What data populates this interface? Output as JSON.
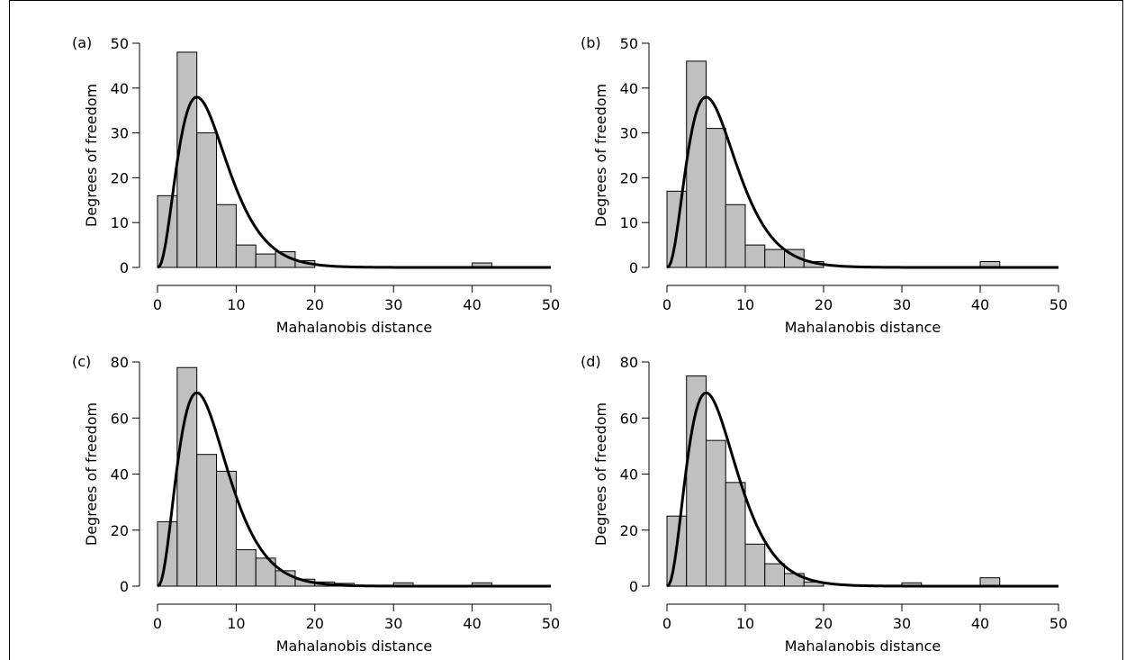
{
  "chart_data": [
    {
      "type": "bar",
      "panel_label": "(a)",
      "xlabel": "Mahalanobis distance",
      "ylabel": "Degrees of freedom",
      "xlim": [
        0,
        50
      ],
      "ylim": [
        0,
        50
      ],
      "xticks": [
        0,
        10,
        20,
        30,
        40,
        50
      ],
      "yticks": [
        0,
        10,
        20,
        30,
        40,
        50
      ],
      "bin_width": 2.5,
      "bins": [
        {
          "x0": 0,
          "value": 16
        },
        {
          "x0": 2.5,
          "value": 48
        },
        {
          "x0": 5,
          "value": 30
        },
        {
          "x0": 7.5,
          "value": 14
        },
        {
          "x0": 10,
          "value": 5
        },
        {
          "x0": 12.5,
          "value": 3
        },
        {
          "x0": 15,
          "value": 3.5
        },
        {
          "x0": 17.5,
          "value": 1.5
        },
        {
          "x0": 40,
          "value": 1
        }
      ],
      "curve_peak": 38,
      "bar_color": "#c0c0c0",
      "curve_color": "#000000"
    },
    {
      "type": "bar",
      "panel_label": "(b)",
      "xlabel": "Mahalanobis distance",
      "ylabel": "Degrees of freedom",
      "xlim": [
        0,
        50
      ],
      "ylim": [
        0,
        50
      ],
      "xticks": [
        0,
        10,
        20,
        30,
        40,
        50
      ],
      "yticks": [
        0,
        10,
        20,
        30,
        40,
        50
      ],
      "bin_width": 2.5,
      "bins": [
        {
          "x0": 0,
          "value": 17
        },
        {
          "x0": 2.5,
          "value": 46
        },
        {
          "x0": 5,
          "value": 31
        },
        {
          "x0": 7.5,
          "value": 14
        },
        {
          "x0": 10,
          "value": 5
        },
        {
          "x0": 12.5,
          "value": 4
        },
        {
          "x0": 15,
          "value": 4
        },
        {
          "x0": 17.5,
          "value": 1.3
        },
        {
          "x0": 40,
          "value": 1.3
        }
      ],
      "curve_peak": 38,
      "bar_color": "#c0c0c0",
      "curve_color": "#000000"
    },
    {
      "type": "bar",
      "panel_label": "(c)",
      "xlabel": "Mahalanobis distance",
      "ylabel": "Degrees of freedom",
      "xlim": [
        0,
        50
      ],
      "ylim": [
        0,
        80
      ],
      "xticks": [
        0,
        10,
        20,
        30,
        40,
        50
      ],
      "yticks": [
        0,
        20,
        40,
        60,
        80
      ],
      "bin_width": 2.5,
      "bins": [
        {
          "x0": 0,
          "value": 23
        },
        {
          "x0": 2.5,
          "value": 78
        },
        {
          "x0": 5,
          "value": 47
        },
        {
          "x0": 7.5,
          "value": 41
        },
        {
          "x0": 10,
          "value": 13
        },
        {
          "x0": 12.5,
          "value": 10
        },
        {
          "x0": 15,
          "value": 5.5
        },
        {
          "x0": 17.5,
          "value": 2.5
        },
        {
          "x0": 20,
          "value": 1.5
        },
        {
          "x0": 22.5,
          "value": 1
        },
        {
          "x0": 30,
          "value": 1.2
        },
        {
          "x0": 40,
          "value": 1.2
        }
      ],
      "curve_peak": 69,
      "bar_color": "#c0c0c0",
      "curve_color": "#000000"
    },
    {
      "type": "bar",
      "panel_label": "(d)",
      "xlabel": "Mahalanobis distance",
      "ylabel": "Degrees of freedom",
      "xlim": [
        0,
        50
      ],
      "ylim": [
        0,
        80
      ],
      "xticks": [
        0,
        10,
        20,
        30,
        40,
        50
      ],
      "yticks": [
        0,
        20,
        40,
        60,
        80
      ],
      "bin_width": 2.5,
      "bins": [
        {
          "x0": 0,
          "value": 25
        },
        {
          "x0": 2.5,
          "value": 75
        },
        {
          "x0": 5,
          "value": 52
        },
        {
          "x0": 7.5,
          "value": 37
        },
        {
          "x0": 10,
          "value": 15
        },
        {
          "x0": 12.5,
          "value": 8
        },
        {
          "x0": 15,
          "value": 4.5
        },
        {
          "x0": 17.5,
          "value": 1.5
        },
        {
          "x0": 30,
          "value": 1.2
        },
        {
          "x0": 40,
          "value": 3
        }
      ],
      "curve_peak": 69,
      "bar_color": "#c0c0c0",
      "curve_color": "#000000"
    }
  ]
}
